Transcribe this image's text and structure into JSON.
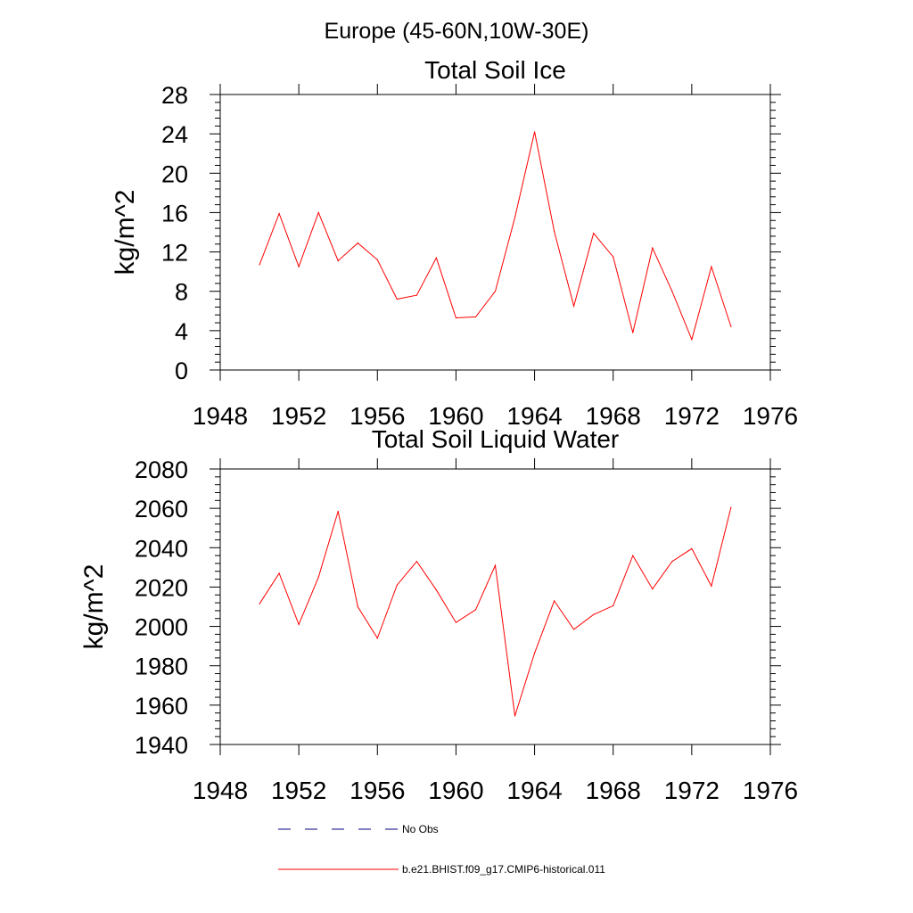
{
  "figure": {
    "main_title": "Europe (45-60N,10W-30E)"
  },
  "legend": {
    "items": [
      {
        "label": "No Obs",
        "color": "#000080",
        "style": "dashed"
      },
      {
        "label": "b.e21.BHIST.f09_g17.CMIP6-historical.011",
        "color": "#ff0000",
        "style": "solid"
      }
    ]
  },
  "chart_data": [
    {
      "type": "line",
      "title": "Total Soil Ice",
      "xlabel": "",
      "ylabel": "kg/m^2",
      "xlim": [
        1948,
        1976
      ],
      "ylim": [
        0,
        28
      ],
      "xticks": [
        1948,
        1952,
        1956,
        1960,
        1964,
        1968,
        1972,
        1976
      ],
      "yticks": [
        0,
        4,
        8,
        12,
        16,
        20,
        24,
        28
      ],
      "grid": false,
      "x": [
        1950,
        1951,
        1952,
        1953,
        1954,
        1955,
        1956,
        1957,
        1958,
        1959,
        1960,
        1961,
        1962,
        1963,
        1964,
        1965,
        1966,
        1967,
        1968,
        1969,
        1970,
        1971,
        1972,
        1973,
        1974
      ],
      "series": [
        {
          "name": "b.e21.BHIST.f09_g17.CMIP6-historical.011",
          "color": "#ff0000",
          "values": [
            10.7,
            15.9,
            10.5,
            16.0,
            11.1,
            12.9,
            11.2,
            7.2,
            7.6,
            11.4,
            5.3,
            5.4,
            8.0,
            15.5,
            24.2,
            14.1,
            6.5,
            13.9,
            11.5,
            3.8,
            12.4,
            8.0,
            3.1,
            10.5,
            4.4
          ]
        }
      ]
    },
    {
      "type": "line",
      "title": "Total Soil Liquid Water",
      "xlabel": "",
      "ylabel": "kg/m^2",
      "xlim": [
        1948,
        1976
      ],
      "ylim": [
        1940,
        2080
      ],
      "xticks": [
        1948,
        1952,
        1956,
        1960,
        1964,
        1968,
        1972,
        1976
      ],
      "yticks": [
        1940,
        1960,
        1980,
        2000,
        2020,
        2040,
        2060,
        2080
      ],
      "grid": false,
      "x": [
        1950,
        1951,
        1952,
        1953,
        1954,
        1955,
        1956,
        1957,
        1958,
        1959,
        1960,
        1961,
        1962,
        1963,
        1964,
        1965,
        1966,
        1967,
        1968,
        1969,
        1970,
        1971,
        1972,
        1973,
        1974
      ],
      "series": [
        {
          "name": "b.e21.BHIST.f09_g17.CMIP6-historical.011",
          "color": "#ff0000",
          "values": [
            2011.5,
            2027,
            2001,
            2025,
            2058.5,
            2010,
            1994,
            2021,
            2033,
            2018.5,
            2002,
            2008.5,
            2031,
            1954.5,
            1986.5,
            2013,
            1998.5,
            2006,
            2010.5,
            2036,
            2019,
            2033,
            2039.5,
            2020.5,
            2060.5
          ]
        }
      ]
    }
  ]
}
